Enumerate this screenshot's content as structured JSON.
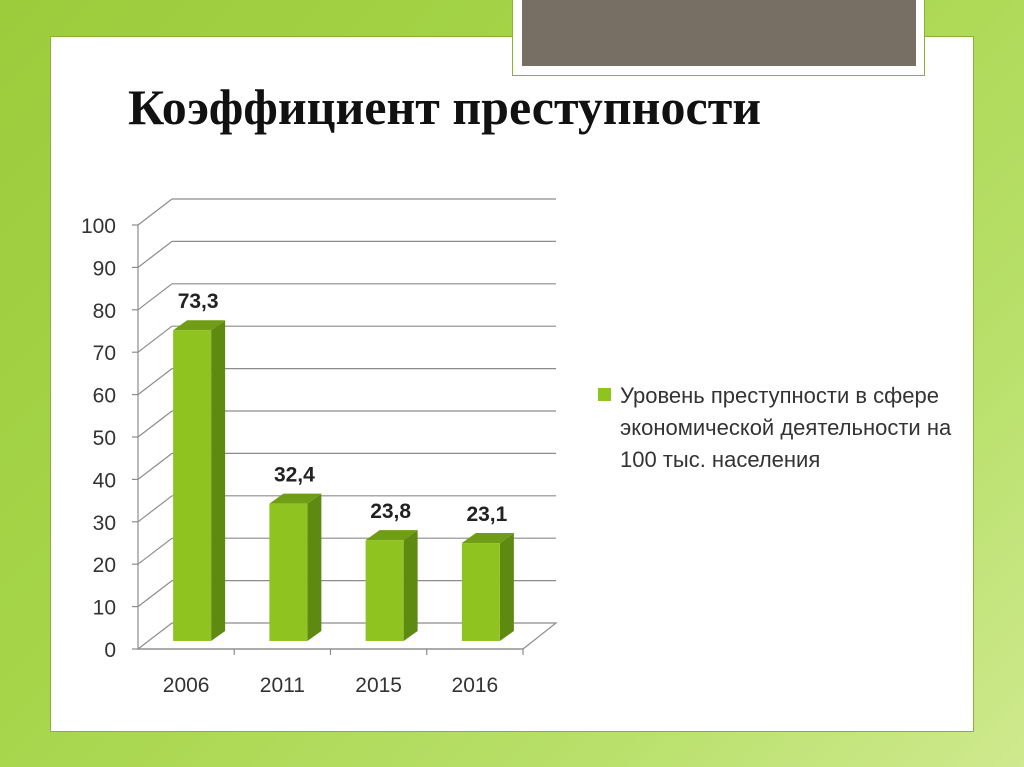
{
  "slide": {
    "title": "Коэффициент преступности",
    "colors": {
      "background": "#a6d54a",
      "panel": "#ffffff",
      "header_bar": "#776f63"
    }
  },
  "chart_data": {
    "type": "bar",
    "title": "",
    "xlabel": "",
    "ylabel": "",
    "categories": [
      "2006",
      "2011",
      "2015",
      "2016"
    ],
    "series": [
      {
        "name": "Уровень преступности в сфере экономической деятельности на 100 тыс. населения",
        "values": [
          73.3,
          32.4,
          23.8,
          23.1
        ],
        "labels": [
          "73,3",
          "32,4",
          "23,8",
          "23,1"
        ],
        "color": "#8fc31f"
      }
    ],
    "ylim": [
      0,
      100
    ],
    "yticks": [
      "0",
      "10",
      "20",
      "30",
      "40",
      "50",
      "60",
      "70",
      "80",
      "90",
      "100"
    ],
    "grid": true,
    "legend": "right",
    "style": "3d-column"
  }
}
